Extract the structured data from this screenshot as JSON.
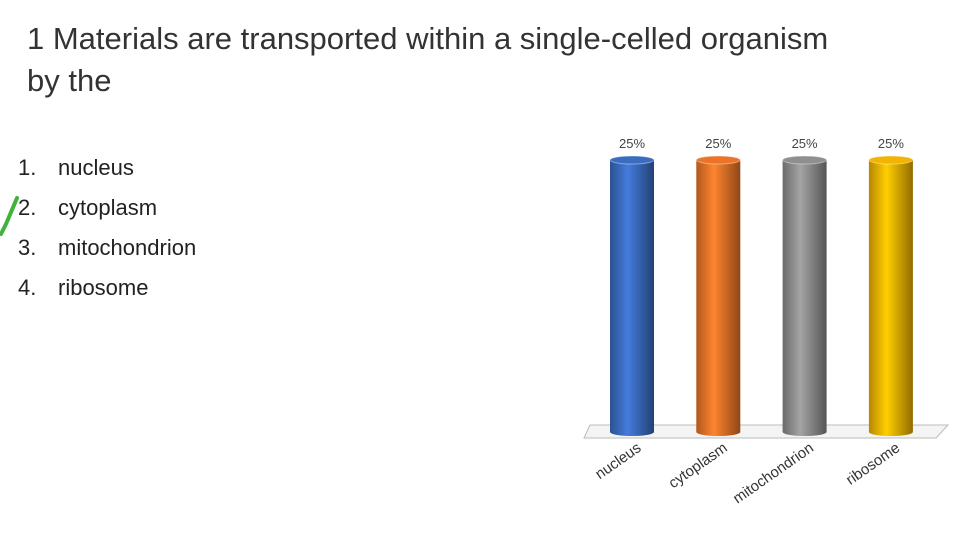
{
  "slide": {
    "title": "1 Materials are transported within a single-celled organism by the",
    "items": [
      {
        "marker": "1.",
        "text": "nucleus",
        "checked": false
      },
      {
        "marker": "2.",
        "text": "cytoplasm",
        "checked": true
      },
      {
        "marker": "3.",
        "text": "mitochondrion",
        "checked": false
      },
      {
        "marker": "4.",
        "text": "ribosome",
        "checked": false
      }
    ]
  },
  "chart_data": {
    "type": "bar",
    "categories": [
      "nucleus",
      "cytoplasm",
      "mitochondrion",
      "ribosome"
    ],
    "values": [
      25,
      25,
      25,
      25
    ],
    "value_labels": [
      "25%",
      "25%",
      "25%",
      "25%"
    ],
    "colors": [
      "#3a6cc0",
      "#ec7428",
      "#8f8f8f",
      "#f2b400"
    ]
  }
}
